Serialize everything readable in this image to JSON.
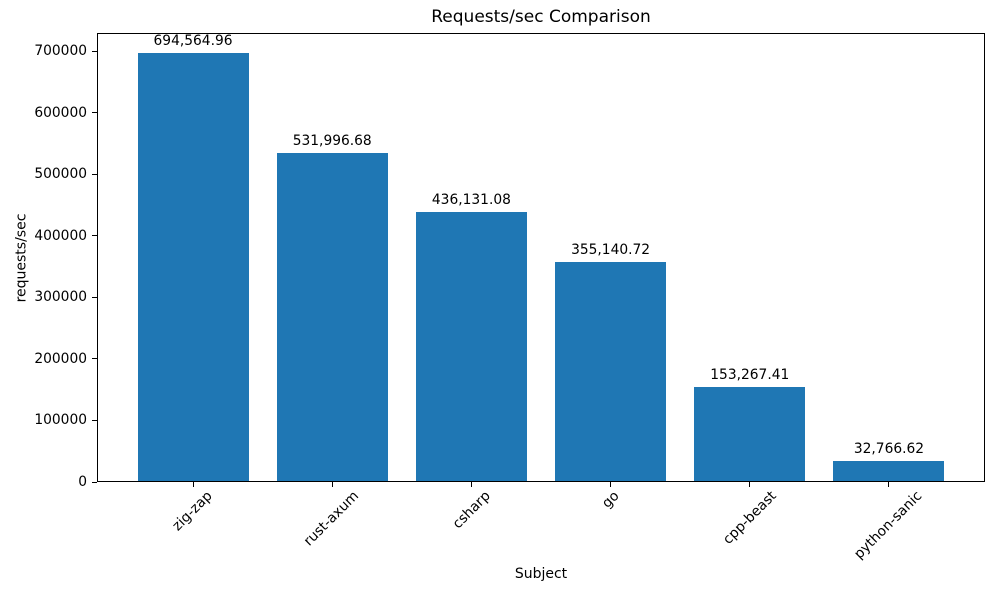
{
  "chart_data": {
    "type": "bar",
    "title": "Requests/sec Comparison",
    "xlabel": "Subject",
    "ylabel": "requests/sec",
    "categories": [
      "zig-zap",
      "rust-axum",
      "csharp",
      "go",
      "cpp-beast",
      "python-sanic"
    ],
    "values": [
      694564.96,
      531996.68,
      436131.08,
      355140.72,
      153267.41,
      32766.62
    ],
    "value_labels": [
      "694,564.96",
      "531,996.68",
      "436,131.08",
      "355,140.72",
      "153,267.41",
      "32,766.62"
    ],
    "yticks": [
      0,
      100000,
      200000,
      300000,
      400000,
      500000,
      600000,
      700000
    ],
    "ylim": [
      0,
      729293
    ],
    "bar_color": "#1f77b4",
    "text_color": "#000000",
    "grid": false,
    "legend": null,
    "x_tick_rotation_deg": 45
  }
}
